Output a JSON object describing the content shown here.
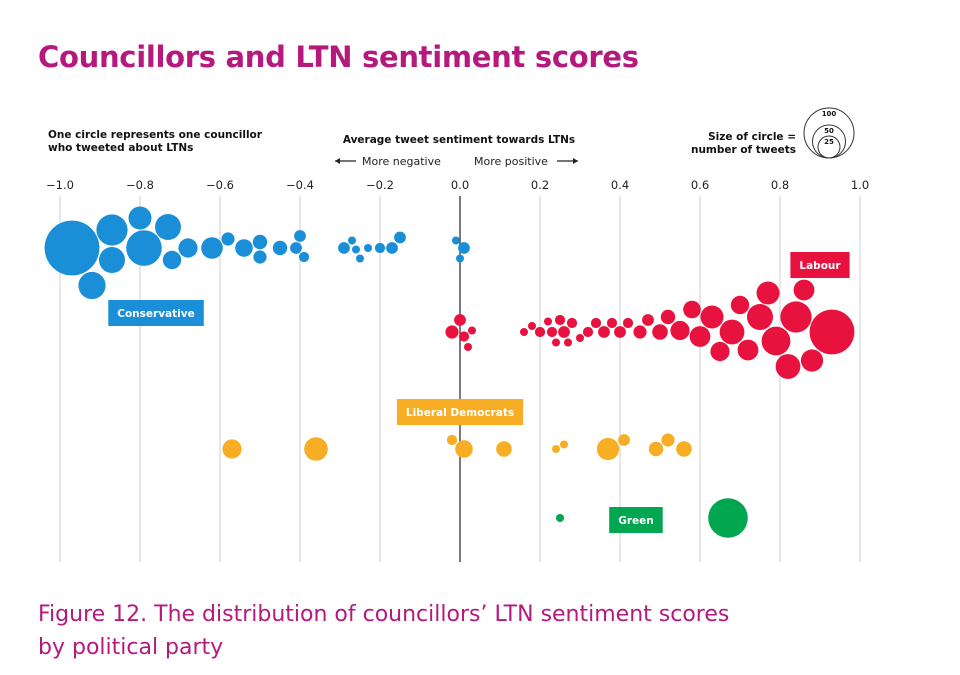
{
  "title": "Councillors and LTN sentiment scores",
  "caption": "Figure 12. The distribution of councillors’ LTN sentiment scores by political party",
  "notes": {
    "circle_note_line1": "One circle represents one councillor",
    "circle_note_line2": "who tweeted about LTNs",
    "axis_title": "Average tweet sentiment towards LTNs",
    "more_negative": "More negative",
    "more_positive": "More positive",
    "size_line1": "Size of circle =",
    "size_line2": "number of tweets"
  },
  "colors": {
    "title": "#b5197d",
    "Conservative": "#1a8fd8",
    "Labour": "#e8123f",
    "Liberal Democrats": "#f7ad24",
    "Green": "#00a650",
    "grid": "#cccccc",
    "zero_line": "#222222"
  },
  "chart_data": {
    "type": "scatter",
    "subtype": "beeswarm",
    "title": "Councillors and LTN sentiment scores",
    "xlabel": "Average tweet sentiment towards LTNs",
    "xlim": [
      -1.0,
      1.0
    ],
    "ticks": [
      "−1.0",
      "−0.8",
      "−0.6",
      "−0.4",
      "−0.2",
      "0.0",
      "0.2",
      "0.4",
      "0.6",
      "0.8",
      "1.0"
    ],
    "tick_values": [
      -1.0,
      -0.8,
      -0.6,
      -0.4,
      -0.2,
      0.0,
      0.2,
      0.4,
      0.6,
      0.8,
      1.0
    ],
    "size_legend": {
      "values": [
        100,
        50,
        25
      ],
      "labels": [
        "100",
        "50",
        "25"
      ]
    },
    "series": [
      {
        "name": "Conservative",
        "label": "Conservative",
        "label_x": -0.76,
        "points": [
          {
            "x": -0.97,
            "size": 100
          },
          {
            "x": -0.92,
            "size": 22
          },
          {
            "x": -0.87,
            "size": 30
          },
          {
            "x": -0.87,
            "size": 20
          },
          {
            "x": -0.8,
            "size": 15
          },
          {
            "x": -0.79,
            "size": 40
          },
          {
            "x": -0.73,
            "size": 20
          },
          {
            "x": -0.72,
            "size": 9
          },
          {
            "x": -0.68,
            "size": 10
          },
          {
            "x": -0.62,
            "size": 13
          },
          {
            "x": -0.58,
            "size": 4
          },
          {
            "x": -0.54,
            "size": 8
          },
          {
            "x": -0.5,
            "size": 5
          },
          {
            "x": -0.5,
            "size": 4
          },
          {
            "x": -0.45,
            "size": 5
          },
          {
            "x": -0.41,
            "size": 3
          },
          {
            "x": -0.4,
            "size": 3
          },
          {
            "x": -0.39,
            "size": 2
          },
          {
            "x": -0.29,
            "size": 3
          },
          {
            "x": -0.27,
            "size": 1
          },
          {
            "x": -0.26,
            "size": 1
          },
          {
            "x": -0.25,
            "size": 1
          },
          {
            "x": -0.23,
            "size": 1
          },
          {
            "x": -0.2,
            "size": 2
          },
          {
            "x": -0.17,
            "size": 3
          },
          {
            "x": -0.15,
            "size": 3
          },
          {
            "x": -0.01,
            "size": 1
          },
          {
            "x": 0.0,
            "size": 1
          },
          {
            "x": 0.01,
            "size": 3
          }
        ]
      },
      {
        "name": "Labour",
        "label": "Labour",
        "label_x": 0.9,
        "points": [
          {
            "x": -0.02,
            "size": 4
          },
          {
            "x": 0.0,
            "size": 3
          },
          {
            "x": 0.01,
            "size": 2
          },
          {
            "x": 0.02,
            "size": 1
          },
          {
            "x": 0.03,
            "size": 1
          },
          {
            "x": 0.16,
            "size": 1
          },
          {
            "x": 0.18,
            "size": 1
          },
          {
            "x": 0.2,
            "size": 2
          },
          {
            "x": 0.22,
            "size": 1
          },
          {
            "x": 0.23,
            "size": 2
          },
          {
            "x": 0.24,
            "size": 1
          },
          {
            "x": 0.25,
            "size": 2
          },
          {
            "x": 0.26,
            "size": 3
          },
          {
            "x": 0.27,
            "size": 1
          },
          {
            "x": 0.28,
            "size": 2
          },
          {
            "x": 0.3,
            "size": 1
          },
          {
            "x": 0.32,
            "size": 2
          },
          {
            "x": 0.34,
            "size": 2
          },
          {
            "x": 0.36,
            "size": 3
          },
          {
            "x": 0.38,
            "size": 2
          },
          {
            "x": 0.4,
            "size": 3
          },
          {
            "x": 0.42,
            "size": 2
          },
          {
            "x": 0.45,
            "size": 4
          },
          {
            "x": 0.47,
            "size": 3
          },
          {
            "x": 0.5,
            "size": 6
          },
          {
            "x": 0.52,
            "size": 5
          },
          {
            "x": 0.55,
            "size": 10
          },
          {
            "x": 0.58,
            "size": 8
          },
          {
            "x": 0.6,
            "size": 12
          },
          {
            "x": 0.63,
            "size": 15
          },
          {
            "x": 0.65,
            "size": 10
          },
          {
            "x": 0.68,
            "size": 18
          },
          {
            "x": 0.7,
            "size": 9
          },
          {
            "x": 0.72,
            "size": 12
          },
          {
            "x": 0.75,
            "size": 20
          },
          {
            "x": 0.77,
            "size": 15
          },
          {
            "x": 0.79,
            "size": 25
          },
          {
            "x": 0.82,
            "size": 18
          },
          {
            "x": 0.84,
            "size": 30
          },
          {
            "x": 0.86,
            "size": 12
          },
          {
            "x": 0.88,
            "size": 14
          },
          {
            "x": 0.93,
            "size": 65
          }
        ]
      },
      {
        "name": "Liberal Democrats",
        "label": "Liberal Democrats",
        "label_x": 0.0,
        "points": [
          {
            "x": -0.57,
            "size": 10
          },
          {
            "x": -0.36,
            "size": 16
          },
          {
            "x": -0.02,
            "size": 2
          },
          {
            "x": 0.01,
            "size": 8
          },
          {
            "x": 0.11,
            "size": 6
          },
          {
            "x": 0.24,
            "size": 1
          },
          {
            "x": 0.26,
            "size": 1
          },
          {
            "x": 0.37,
            "size": 14
          },
          {
            "x": 0.41,
            "size": 3
          },
          {
            "x": 0.49,
            "size": 5
          },
          {
            "x": 0.52,
            "size": 4
          },
          {
            "x": 0.56,
            "size": 6
          }
        ]
      },
      {
        "name": "Green",
        "label": "Green",
        "label_x": 0.44,
        "points": [
          {
            "x": 0.25,
            "size": 1
          },
          {
            "x": 0.67,
            "size": 50
          }
        ]
      }
    ]
  }
}
